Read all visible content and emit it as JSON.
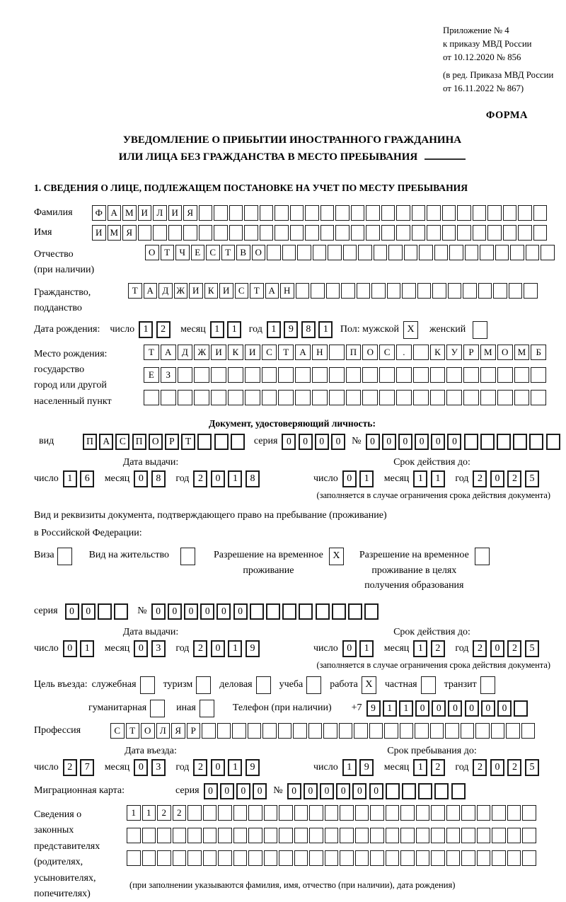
{
  "annex": {
    "l1": "Приложение № 4",
    "l2": "к приказу МВД России",
    "l3": "от 10.12.2020 № 856",
    "e1": "(в ред. Приказа МВД России",
    "e2": "от 16.11.2022 № 867)"
  },
  "form_label": "ФОРМА",
  "title": {
    "line1": "УВЕДОМЛЕНИЕ О ПРИБЫТИИ ИНОСТРАННОГО ГРАЖДАНИНА",
    "line2": "ИЛИ ЛИЦА БЕЗ ГРАЖДАНСТВА В МЕСТО ПРЕБЫВАНИЯ"
  },
  "section1": "1. СВЕДЕНИЯ О ЛИЦЕ, ПОДЛЕЖАЩЕМ ПОСТАНОВКЕ НА УЧЕТ ПО МЕСТУ ПРЕБЫВАНИЯ",
  "labels": {
    "surname": "Фамилия",
    "name": "Имя",
    "patronymic_l1": "Отчество",
    "patronymic_l2": "(при наличии)",
    "citizenship_l1": "Гражданство,",
    "citizenship_l2": "подданство",
    "birth_date": "Дата рождения:",
    "day": "число",
    "month": "месяц",
    "year": "год",
    "sex_male": "Пол: мужской",
    "sex_female": "женский",
    "birthplace_l1": "Место рождения:",
    "birthplace_l2": "государство",
    "birthplace_l3": "город или другой",
    "birthplace_l4": "населенный пункт",
    "id_doc_header": "Документ, удостоверяющий личность:",
    "kind": "вид",
    "series": "серия",
    "number": "№",
    "issue_date": "Дата выдачи:",
    "valid_until": "Срок действия до:",
    "valid_note": "(заполняется в случае ограничения срока действия документа)",
    "residence_doc_l1": "Вид и реквизиты документа, подтверждающего право на пребывание (проживание)",
    "residence_doc_l2": "в Российской Федерации:",
    "visa": "Виза",
    "residence_permit": "Вид на жительство",
    "temp_permit_l1": "Разрешение на временное",
    "temp_permit_l2": "проживание",
    "edu_permit_l1": "Разрешение на временное",
    "edu_permit_l2": "проживание в целях",
    "edu_permit_l3": "получения образования",
    "entry_goal": "Цель въезда:",
    "goal_official": "служебная",
    "goal_tourism": "туризм",
    "goal_business": "деловая",
    "goal_study": "учеба",
    "goal_work": "работа",
    "goal_private": "частная",
    "goal_transit": "транзит",
    "goal_humanitarian": "гуманитарная",
    "goal_other": "иная",
    "phone": "Телефон (при наличии)",
    "phone_prefix": "+7",
    "profession": "Профессия",
    "entry_date": "Дата въезда:",
    "stay_until": "Срок пребывания до:",
    "migration_card": "Миграционная карта:",
    "reps_l1": "Сведения о",
    "reps_l2": "законных",
    "reps_l3": "представителях",
    "reps_l4": "(родителях,",
    "reps_l5": "усыновителях,",
    "reps_l6": "попечителях)",
    "reps_note": "(при заполнении указываются фамилия, имя, отчество (при наличии), дата рождения)"
  },
  "fields": {
    "surname": {
      "count": 30,
      "value": "ФАМИЛИЯ"
    },
    "name": {
      "count": 30,
      "value": "ИМЯ"
    },
    "patronymic": {
      "count": 27,
      "value": "ОТЧЕСТВО"
    },
    "citizenship": {
      "count": 27,
      "value": "ТАДЖИКИСТАН"
    },
    "birth_day": {
      "count": 2,
      "value": "12"
    },
    "birth_month": {
      "count": 2,
      "value": "11"
    },
    "birth_year": {
      "count": 4,
      "value": "1981"
    },
    "sex_male_box": {
      "count": 1,
      "value": "X"
    },
    "sex_female_box": {
      "count": 1,
      "value": ""
    },
    "birthplace_row1": {
      "count": 24,
      "value": "ТАДЖИКИСТАН ПОС. КУРМОМБ"
    },
    "birthplace_row2": {
      "count": 24,
      "value": "ЕЗ"
    },
    "birthplace_row3": {
      "count": 24,
      "value": ""
    },
    "id_kind": {
      "count": 10,
      "value": "ПАСПОРТ"
    },
    "id_series": {
      "count": 4,
      "value": "0000"
    },
    "id_number": {
      "count": 12,
      "value": "000000"
    },
    "id_issue_day": {
      "count": 2,
      "value": "16"
    },
    "id_issue_month": {
      "count": 2,
      "value": "08"
    },
    "id_issue_year": {
      "count": 4,
      "value": "2018"
    },
    "id_valid_day": {
      "count": 2,
      "value": "01"
    },
    "id_valid_month": {
      "count": 2,
      "value": "11"
    },
    "id_valid_year": {
      "count": 4,
      "value": "2025"
    },
    "visa_box": {
      "count": 1,
      "value": ""
    },
    "residence_permit_box": {
      "count": 1,
      "value": ""
    },
    "temp_permit_box": {
      "count": 1,
      "value": "X"
    },
    "edu_permit_box": {
      "count": 1,
      "value": ""
    },
    "res_series": {
      "count": 4,
      "value": "00"
    },
    "res_number": {
      "count": 14,
      "value": "000000"
    },
    "res_issue_day": {
      "count": 2,
      "value": "01"
    },
    "res_issue_month": {
      "count": 2,
      "value": "03"
    },
    "res_issue_year": {
      "count": 4,
      "value": "2019"
    },
    "res_valid_day": {
      "count": 2,
      "value": "01"
    },
    "res_valid_month": {
      "count": 2,
      "value": "12"
    },
    "res_valid_year": {
      "count": 4,
      "value": "2025"
    },
    "goal_official_box": {
      "count": 1,
      "value": ""
    },
    "goal_tourism_box": {
      "count": 1,
      "value": ""
    },
    "goal_business_box": {
      "count": 1,
      "value": ""
    },
    "goal_study_box": {
      "count": 1,
      "value": ""
    },
    "goal_work_box": {
      "count": 1,
      "value": "X"
    },
    "goal_private_box": {
      "count": 1,
      "value": ""
    },
    "goal_transit_box": {
      "count": 1,
      "value": ""
    },
    "goal_humanitarian_box": {
      "count": 1,
      "value": ""
    },
    "goal_other_box": {
      "count": 1,
      "value": ""
    },
    "phone_cells": {
      "count": 10,
      "value": "911000000"
    },
    "profession": {
      "count": 28,
      "value": "СТОЛЯР"
    },
    "entry_day": {
      "count": 2,
      "value": "27"
    },
    "entry_month": {
      "count": 2,
      "value": "03"
    },
    "entry_year": {
      "count": 4,
      "value": "2019"
    },
    "stay_day": {
      "count": 2,
      "value": "19"
    },
    "stay_month": {
      "count": 2,
      "value": "12"
    },
    "stay_year": {
      "count": 4,
      "value": "2025"
    },
    "mc_series": {
      "count": 4,
      "value": "0000"
    },
    "mc_number": {
      "count": 11,
      "value": "000000"
    },
    "reps_row1": {
      "count": 27,
      "value": "1122"
    },
    "reps_row2": {
      "count": 27,
      "value": ""
    },
    "reps_row3": {
      "count": 27,
      "value": ""
    }
  }
}
